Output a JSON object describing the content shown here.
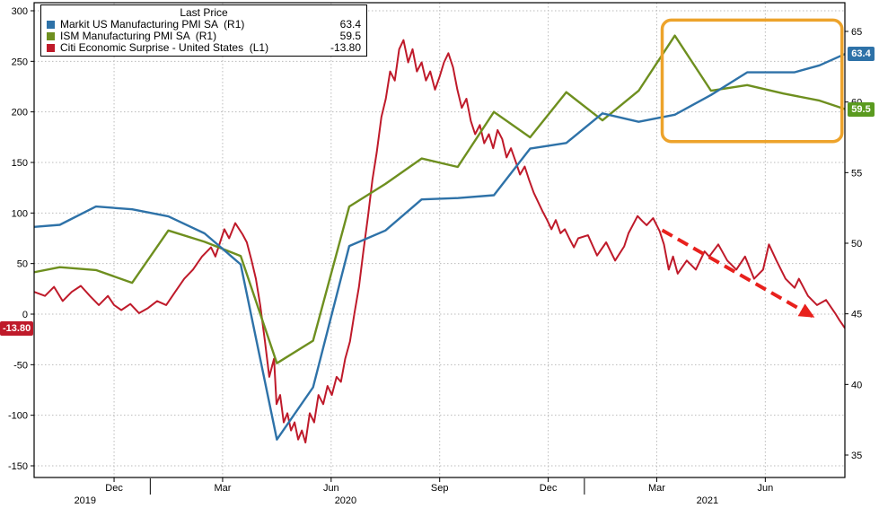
{
  "legend": {
    "title": "Last Price",
    "items": [
      {
        "label": "Markit US Manufacturing PMI SA  (R1)",
        "value": "63.4",
        "color": "#2e72a8"
      },
      {
        "label": "ISM Manufacturing PMI SA  (R1)",
        "value": "59.5",
        "color": "#6e8f1f"
      },
      {
        "label": "Citi Economic Surprise - United States  (L1)",
        "value": "-13.80",
        "color": "#bf1a2a"
      }
    ]
  },
  "badges": {
    "markit": {
      "text": "63.4",
      "value": 63.4,
      "axis": "right",
      "color": "#2e72a8"
    },
    "ism": {
      "text": "59.5",
      "value": 59.5,
      "axis": "right",
      "color": "#5a9a1f"
    },
    "citi": {
      "text": "-13.80",
      "value": -13.8,
      "axis": "left",
      "color": "#bf1a2a"
    }
  },
  "chart_data": {
    "type": "line",
    "title": "Last Price",
    "x_axis": {
      "unit": "months (t=0 at Oct 2019)",
      "range": [
        -0.21,
        22.2
      ],
      "ticks": [
        {
          "t": 2,
          "label": "Dec"
        },
        {
          "t": 5,
          "label": "Mar"
        },
        {
          "t": 8,
          "label": "Jun"
        },
        {
          "t": 11,
          "label": "Sep"
        },
        {
          "t": 14,
          "label": "Dec"
        },
        {
          "t": 17,
          "label": "Mar"
        },
        {
          "t": 20,
          "label": "Jun"
        }
      ],
      "year_labels": [
        {
          "t": 1.2,
          "label": "2019"
        },
        {
          "t": 8.4,
          "label": "2020"
        },
        {
          "t": 18.4,
          "label": "2021"
        }
      ],
      "year_dividers": [
        3,
        15
      ]
    },
    "left_axis": {
      "name": "L1",
      "range": [
        -150,
        300
      ],
      "ticks": [
        300,
        250,
        200,
        150,
        100,
        50,
        0,
        -50,
        -100,
        -150
      ]
    },
    "right_axis": {
      "name": "R1",
      "range": [
        35,
        65
      ],
      "ticks": [
        65,
        60,
        55,
        50,
        45,
        40,
        35
      ]
    },
    "grid": {
      "color": "#bbbbbb",
      "style": "dotted"
    },
    "series": [
      {
        "key": "markit",
        "name": "Markit US Manufacturing PMI SA",
        "axis": "right",
        "color": "#2e72a8",
        "width": 2.4,
        "last_price": 63.4,
        "points": [
          [
            -0.5,
            51.1
          ],
          [
            0.5,
            51.3
          ],
          [
            1.5,
            52.6
          ],
          [
            2.5,
            52.4
          ],
          [
            3.5,
            51.9
          ],
          [
            4.5,
            50.7
          ],
          [
            5.5,
            48.5
          ],
          [
            6.5,
            36.1
          ],
          [
            7.5,
            39.8
          ],
          [
            8.5,
            49.8
          ],
          [
            9.5,
            50.9
          ],
          [
            10.5,
            53.1
          ],
          [
            11.5,
            53.2
          ],
          [
            12.5,
            53.4
          ],
          [
            13.5,
            56.7
          ],
          [
            14.5,
            57.1
          ],
          [
            15.5,
            59.2
          ],
          [
            16.5,
            58.6
          ],
          [
            17.5,
            59.1
          ],
          [
            18.5,
            60.5
          ],
          [
            19.5,
            62.1
          ],
          [
            20.8,
            62.1
          ],
          [
            21.5,
            62.6
          ],
          [
            22.2,
            63.4
          ]
        ]
      },
      {
        "key": "ism",
        "name": "ISM Manufacturing PMI SA",
        "axis": "right",
        "color": "#6e8f1f",
        "width": 2.4,
        "last_price": 59.5,
        "points": [
          [
            -0.5,
            47.8
          ],
          [
            0.5,
            48.3
          ],
          [
            1.5,
            48.1
          ],
          [
            2.5,
            47.2
          ],
          [
            3.5,
            50.9
          ],
          [
            4.5,
            50.1
          ],
          [
            5.5,
            49.1
          ],
          [
            6.5,
            41.5
          ],
          [
            7.5,
            43.1
          ],
          [
            8.5,
            52.6
          ],
          [
            9.5,
            54.2
          ],
          [
            10.5,
            56.0
          ],
          [
            11.5,
            55.4
          ],
          [
            12.5,
            59.3
          ],
          [
            13.5,
            57.5
          ],
          [
            14.5,
            60.7
          ],
          [
            15.5,
            58.7
          ],
          [
            16.5,
            60.8
          ],
          [
            17.5,
            64.7
          ],
          [
            18.5,
            60.8
          ],
          [
            19.5,
            61.2
          ],
          [
            20.5,
            60.6
          ],
          [
            21.5,
            60.1
          ],
          [
            22.2,
            59.5
          ]
        ]
      },
      {
        "key": "citi",
        "name": "Citi Economic Surprise - United States",
        "axis": "left",
        "color": "#bf1a2a",
        "width": 2,
        "last_price": -13.8,
        "points": [
          [
            -0.21,
            22
          ],
          [
            0.09,
            18
          ],
          [
            0.34,
            27
          ],
          [
            0.58,
            13
          ],
          [
            0.83,
            22
          ],
          [
            1.08,
            28
          ],
          [
            1.33,
            18
          ],
          [
            1.58,
            9
          ],
          [
            1.83,
            18
          ],
          [
            2.0,
            9
          ],
          [
            2.2,
            4
          ],
          [
            2.45,
            10
          ],
          [
            2.69,
            1
          ],
          [
            2.94,
            6
          ],
          [
            3.19,
            13
          ],
          [
            3.44,
            9
          ],
          [
            3.69,
            22
          ],
          [
            3.94,
            35
          ],
          [
            4.18,
            44
          ],
          [
            4.43,
            57
          ],
          [
            4.68,
            66
          ],
          [
            4.8,
            57
          ],
          [
            4.93,
            71
          ],
          [
            5.05,
            84
          ],
          [
            5.18,
            75
          ],
          [
            5.35,
            90
          ],
          [
            5.55,
            79
          ],
          [
            5.67,
            71
          ],
          [
            5.8,
            53
          ],
          [
            5.92,
            35
          ],
          [
            6.04,
            9
          ],
          [
            6.17,
            -27
          ],
          [
            6.29,
            -62
          ],
          [
            6.42,
            -44
          ],
          [
            6.49,
            -89
          ],
          [
            6.59,
            -80
          ],
          [
            6.69,
            -107
          ],
          [
            6.79,
            -98
          ],
          [
            6.89,
            -115
          ],
          [
            6.99,
            -107
          ],
          [
            7.09,
            -124
          ],
          [
            7.19,
            -115
          ],
          [
            7.29,
            -127
          ],
          [
            7.41,
            -98
          ],
          [
            7.53,
            -107
          ],
          [
            7.65,
            -80
          ],
          [
            7.78,
            -89
          ],
          [
            7.9,
            -71
          ],
          [
            8.02,
            -80
          ],
          [
            8.15,
            -62
          ],
          [
            8.27,
            -67
          ],
          [
            8.39,
            -44
          ],
          [
            8.52,
            -27
          ],
          [
            8.64,
            0
          ],
          [
            8.77,
            27
          ],
          [
            8.89,
            62
          ],
          [
            9.02,
            97
          ],
          [
            9.14,
            133
          ],
          [
            9.26,
            160
          ],
          [
            9.39,
            195
          ],
          [
            9.51,
            213
          ],
          [
            9.63,
            240
          ],
          [
            9.76,
            231
          ],
          [
            9.88,
            262
          ],
          [
            10.0,
            271
          ],
          [
            10.13,
            249
          ],
          [
            10.25,
            262
          ],
          [
            10.37,
            240
          ],
          [
            10.5,
            249
          ],
          [
            10.62,
            231
          ],
          [
            10.74,
            240
          ],
          [
            10.87,
            222
          ],
          [
            11.0,
            235
          ],
          [
            11.12,
            249
          ],
          [
            11.24,
            258
          ],
          [
            11.37,
            244
          ],
          [
            11.49,
            222
          ],
          [
            11.61,
            204
          ],
          [
            11.74,
            213
          ],
          [
            11.86,
            191
          ],
          [
            11.98,
            178
          ],
          [
            12.11,
            187
          ],
          [
            12.23,
            169
          ],
          [
            12.36,
            178
          ],
          [
            12.48,
            164
          ],
          [
            12.6,
            182
          ],
          [
            12.73,
            173
          ],
          [
            12.85,
            155
          ],
          [
            12.97,
            164
          ],
          [
            13.1,
            151
          ],
          [
            13.22,
            138
          ],
          [
            13.35,
            146
          ],
          [
            13.47,
            133
          ],
          [
            13.6,
            120
          ],
          [
            13.72,
            111
          ],
          [
            13.84,
            102
          ],
          [
            13.97,
            93
          ],
          [
            14.09,
            84
          ],
          [
            14.21,
            93
          ],
          [
            14.34,
            80
          ],
          [
            14.46,
            84
          ],
          [
            14.58,
            75
          ],
          [
            14.71,
            66
          ],
          [
            14.83,
            75
          ],
          [
            15.1,
            78
          ],
          [
            15.35,
            58
          ],
          [
            15.6,
            71
          ],
          [
            15.85,
            53
          ],
          [
            16.1,
            67
          ],
          [
            16.22,
            80
          ],
          [
            16.47,
            97
          ],
          [
            16.6,
            92
          ],
          [
            16.72,
            88
          ],
          [
            16.9,
            95
          ],
          [
            17.08,
            82
          ],
          [
            17.2,
            69
          ],
          [
            17.33,
            44
          ],
          [
            17.45,
            57
          ],
          [
            17.58,
            40
          ],
          [
            17.83,
            53
          ],
          [
            18.08,
            44
          ],
          [
            18.32,
            62
          ],
          [
            18.45,
            57
          ],
          [
            18.7,
            69
          ],
          [
            18.95,
            53
          ],
          [
            19.2,
            44
          ],
          [
            19.44,
            57
          ],
          [
            19.69,
            35
          ],
          [
            19.94,
            44
          ],
          [
            20.1,
            69
          ],
          [
            20.31,
            53
          ],
          [
            20.56,
            35
          ],
          [
            20.81,
            26
          ],
          [
            20.93,
            35
          ],
          [
            21.18,
            18
          ],
          [
            21.43,
            9
          ],
          [
            21.68,
            14
          ],
          [
            21.93,
            1
          ],
          [
            22.05,
            -6
          ],
          [
            22.2,
            -13.8
          ]
        ]
      }
    ],
    "annotations": {
      "highlight_box": {
        "axis": "right",
        "t": [
          17.15,
          22.12
        ],
        "v": [
          57.2,
          65.8
        ],
        "color": "#eda32b"
      },
      "arrow": {
        "axis": "left",
        "from": [
          17.15,
          83
        ],
        "to": [
          21.3,
          -2
        ],
        "color": "#e8211d",
        "dash": "13 7",
        "width": 4
      }
    }
  }
}
